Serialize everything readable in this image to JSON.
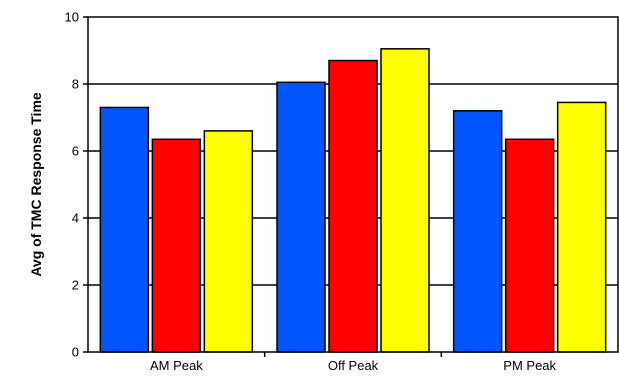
{
  "chart_data": {
    "type": "bar",
    "title": "",
    "xlabel": "",
    "ylabel": "Avg of TMC Response Time",
    "categories": [
      "AM Peak",
      "Off Peak",
      "PM Peak"
    ],
    "series": [
      {
        "color": "#0055ff",
        "values": [
          7.3,
          8.05,
          7.2
        ]
      },
      {
        "color": "#ff0000",
        "values": [
          6.35,
          8.7,
          6.35
        ]
      },
      {
        "color": "#ffff00",
        "values": [
          6.6,
          9.05,
          7.45
        ]
      }
    ],
    "ylim": [
      0,
      10
    ],
    "yticks": [
      0,
      2,
      4,
      6,
      8,
      10
    ],
    "grid": true,
    "legend": "none"
  }
}
